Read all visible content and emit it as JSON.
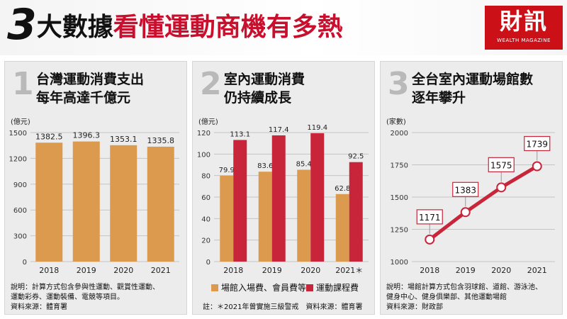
{
  "header": {
    "title_number": "3",
    "title_part1": "大數據",
    "title_part2": "看懂運動商機有多熱",
    "logo_main": "財訊",
    "logo_sub": "WEALTH MAGAZINE"
  },
  "colors": {
    "accent_red": "#c8102e",
    "bar_orange": "#dc9a4f",
    "line_red": "#c8253a",
    "panel_bg": "#ececec"
  },
  "panels": [
    {
      "number": "1",
      "title_lines": [
        "台灣運動消費支出",
        "每年高達千億元"
      ],
      "unit": "(億元)",
      "notes": [
        "說明：計算方式包含參與性運動、觀賞性運動、",
        "運動彩券、運動裝備、電競等項目。",
        "資料來源：體育署"
      ]
    },
    {
      "number": "2",
      "title_lines": [
        "室內運動消費",
        "仍持續成長"
      ],
      "unit": "(億元)",
      "legend": [
        "場館入場費、會員費等",
        "運動課程費"
      ],
      "notes": [
        "註：＊2021年曾實施三級警戒　資料來源：體育署"
      ]
    },
    {
      "number": "3",
      "title_lines": [
        "全台室內運動場館數",
        "逐年攀升"
      ],
      "unit": "(家數)",
      "notes": [
        "說明：場館計算方式包含羽球館、道館、游泳池、",
        "健身中心、健身俱樂部、其他運動場館",
        "資料來源：財政部"
      ]
    }
  ],
  "chart_data": [
    {
      "type": "bar",
      "categories": [
        "2018",
        "2019",
        "2020",
        "2021"
      ],
      "values": [
        1382.5,
        1396.3,
        1353.1,
        1335.8
      ],
      "value_labels": [
        "1382.5",
        "1396.3",
        "1353.1",
        "1335.8"
      ],
      "ylabel": "(億元)",
      "ylim": [
        0,
        1500
      ],
      "yticks": [
        0,
        300,
        600,
        900,
        1200,
        1500
      ],
      "grid": true
    },
    {
      "type": "bar",
      "categories": [
        "2018",
        "2019",
        "2020",
        "2021＊"
      ],
      "series": [
        {
          "name": "場館入場費、會員費等",
          "values": [
            79.9,
            83.6,
            85.4,
            62.8
          ],
          "labels": [
            "79.9",
            "83.6",
            "85.4",
            "62.8"
          ]
        },
        {
          "name": "運動課程費",
          "values": [
            113.1,
            117.4,
            119.4,
            92.5
          ],
          "labels": [
            "113.1",
            "117.4",
            "119.4",
            "92.5"
          ]
        }
      ],
      "ylabel": "(億元)",
      "ylim": [
        0,
        120
      ],
      "yticks": [
        0,
        20,
        40,
        60,
        80,
        100,
        120
      ],
      "grid": true,
      "legend_position": "bottom"
    },
    {
      "type": "line",
      "categories": [
        "2018",
        "2019",
        "2020",
        "2021"
      ],
      "values": [
        1171,
        1383,
        1575,
        1739
      ],
      "value_labels": [
        "1171",
        "1383",
        "1575",
        "1739"
      ],
      "ylabel": "(家數)",
      "ylim": [
        1000,
        2000
      ],
      "yticks": [
        1000,
        1250,
        1500,
        1750,
        2000
      ],
      "grid": true
    }
  ]
}
